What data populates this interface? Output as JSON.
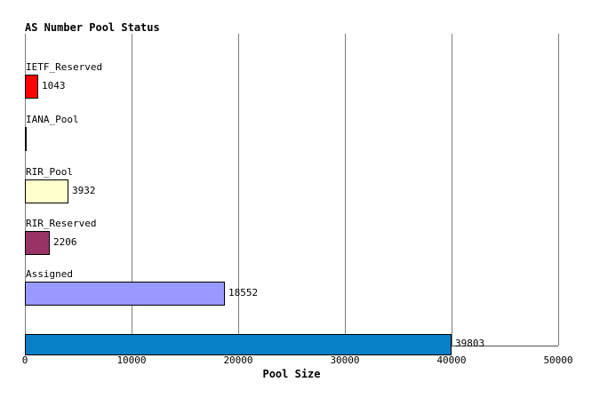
{
  "title": "AS Number Pool Status",
  "chart_data": {
    "type": "bar",
    "orientation": "horizontal",
    "title": "AS Number Pool Status",
    "xlabel": "Pool Size",
    "categories": [
      "IETF_Reserved",
      "IANA_Pool",
      "RIR_Pool",
      "RIR_Reserved",
      "Assigned",
      ""
    ],
    "values": [
      1043,
      0,
      3932,
      2206,
      18552,
      39803
    ],
    "value_labels": [
      "1043",
      "",
      "3932",
      "2206",
      "18552",
      "39803"
    ],
    "bar_colors": [
      "#FF0000",
      "#000000",
      "#FFFFCC",
      "#993366",
      "#9999FF",
      "#0780C8"
    ],
    "outline_color": "#000000",
    "xlim": [
      0,
      50000
    ],
    "xticks": [
      0,
      10000,
      20000,
      30000,
      40000,
      50000
    ],
    "xtick_labels": [
      "0",
      "10000",
      "20000",
      "30000",
      "40000",
      "50000"
    ],
    "grid": true,
    "gridline_color": "#808080",
    "legend": "none"
  }
}
